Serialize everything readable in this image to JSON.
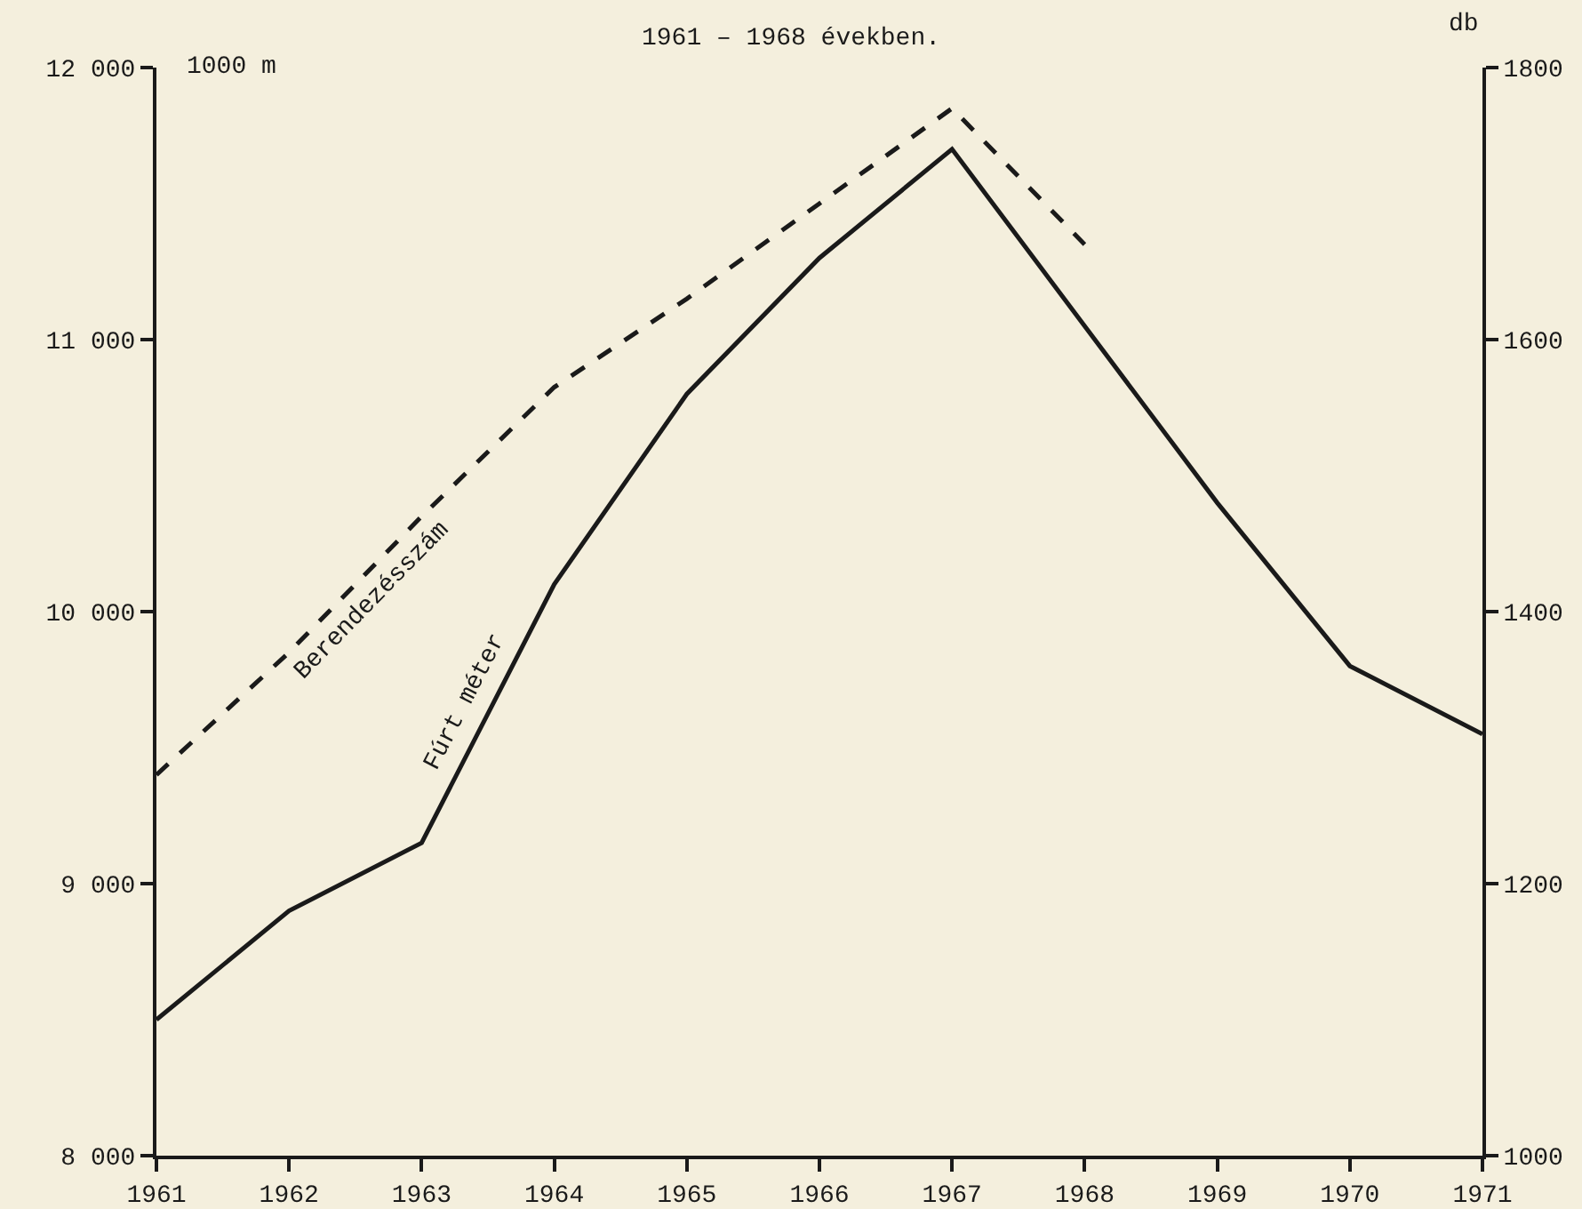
{
  "chart_data": {
    "type": "line",
    "title": "1961 – 1968 években.",
    "ylabel": "1000 m",
    "y2label": "db",
    "x": [
      1961,
      1962,
      1963,
      1964,
      1965,
      1966,
      1967,
      1968,
      1969,
      1970,
      1971
    ],
    "series": [
      {
        "name": "Fúrt méter",
        "color": "#1a1a1a",
        "line_style": "solid",
        "values": [
          8500,
          8900,
          9150,
          10100,
          10800,
          11300,
          11700,
          11050,
          10400,
          9800,
          9550
        ]
      },
      {
        "name": "Berendezésszám",
        "color": "#1a1a1a",
        "line_style": "dashed",
        "axis": "y2",
        "x": [
          1961,
          1962,
          1963,
          1964,
          1965,
          1966,
          1967,
          1968
        ],
        "values": [
          1280,
          1370,
          1470,
          1565,
          1630,
          1700,
          1770,
          1670
        ]
      }
    ],
    "xlim": [
      1961,
      1971
    ],
    "xticks": [
      1961,
      1962,
      1963,
      1964,
      1965,
      1966,
      1967,
      1968,
      1969,
      1970,
      1971
    ],
    "ylim": [
      8000,
      12000
    ],
    "yticks": [
      {
        "value": 8000,
        "label": "8 000"
      },
      {
        "value": 9000,
        "label": "9 000"
      },
      {
        "value": 10000,
        "label": "10 000"
      },
      {
        "value": 11000,
        "label": "11 000"
      },
      {
        "value": 12000,
        "label": "12 000"
      }
    ],
    "y2lim": [
      1000,
      1800
    ],
    "y2ticks": [
      1000,
      1200,
      1400,
      1600,
      1800
    ],
    "grid": false,
    "legend": false,
    "marker": "none"
  }
}
